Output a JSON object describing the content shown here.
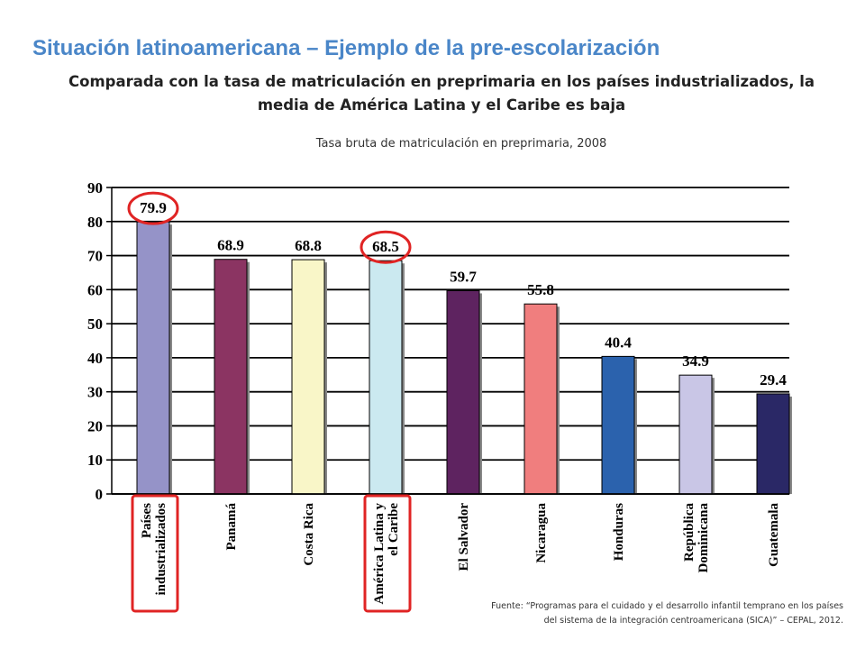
{
  "slide": {
    "title": "Situación latinoamericana – Ejemplo de la pre-escolarización",
    "subtitle": "Comparada con la tasa de matriculación en preprimaria en los países industrializados, la media de América Latina y el Caribe es baja",
    "source_line1": "Fuente: “Programas para el cuidado y el desarrollo infantil temprano en los países",
    "source_line2": "del sistema de la integración centroamericana (SICA)” – CEPAL, 2012."
  },
  "colors": {
    "title": "#4a86c8",
    "highlight": "#e02424",
    "gridline": "#000000"
  },
  "chart_data": {
    "type": "bar",
    "title": "Tasa bruta de matriculación en preprimaria, 2008",
    "categories": [
      [
        "Países",
        "industrializados"
      ],
      [
        "Panamá"
      ],
      [
        "Costa Rica"
      ],
      [
        "América Latina y",
        "el Caribe"
      ],
      [
        "El Salvador"
      ],
      [
        "Nicaragua"
      ],
      [
        "Honduras"
      ],
      [
        "República",
        "Dominicana"
      ],
      [
        "Guatemala"
      ]
    ],
    "values": [
      79.9,
      68.9,
      68.8,
      68.5,
      59.7,
      55.8,
      40.4,
      34.9,
      29.4
    ],
    "data_labels": [
      "79.9",
      "68.9",
      "68.8",
      "68.5",
      "59.7",
      "55.8",
      "40.4",
      "34.9",
      "29.4"
    ],
    "bar_colors": [
      "#9593c8",
      "#8b3462",
      "#f9f6c8",
      "#cbe9f0",
      "#5e2360",
      "#f07e7e",
      "#2b62ad",
      "#c9c6e6",
      "#2a2866"
    ],
    "ylim": [
      0,
      90
    ],
    "yticks": [
      "0",
      "10",
      "20",
      "30",
      "40",
      "50",
      "60",
      "70",
      "80",
      "90"
    ],
    "grid": true,
    "highlighted": [
      "Países industrializados",
      "América Latina y el Caribe"
    ]
  }
}
